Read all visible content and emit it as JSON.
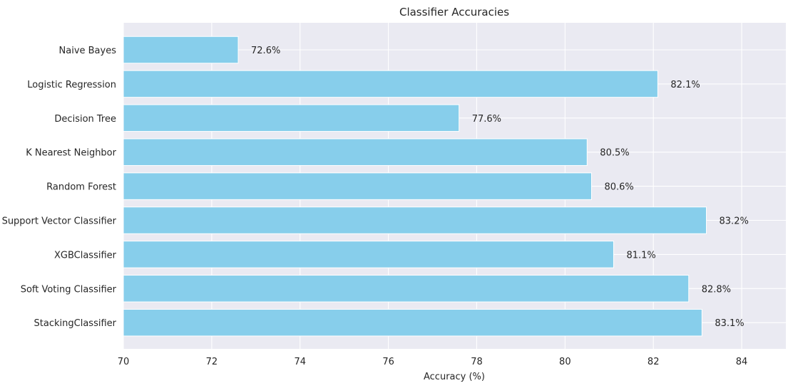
{
  "chart_data": {
    "type": "bar",
    "orientation": "horizontal",
    "title": "Classifier Accuracies",
    "xlabel": "Accuracy (%)",
    "ylabel": "",
    "xlim": [
      70,
      85
    ],
    "xticks": [
      70,
      72,
      74,
      76,
      78,
      80,
      82,
      84
    ],
    "grid": true,
    "bar_color": "#87ceeb",
    "background_color": "#eaeaf2",
    "categories": [
      "Naive Bayes",
      "Logistic Regression",
      "Decision Tree",
      "K Nearest Neighbor",
      "Random Forest",
      "Support Vector Classifier",
      "XGBClassifier",
      "Soft Voting Classifier",
      "StackingClassifier"
    ],
    "values": [
      72.6,
      82.1,
      77.6,
      80.5,
      80.6,
      83.2,
      81.1,
      82.8,
      83.1
    ],
    "value_labels": [
      "72.6%",
      "82.1%",
      "77.6%",
      "80.5%",
      "80.6%",
      "83.2%",
      "81.1%",
      "82.8%",
      "83.1%"
    ]
  }
}
